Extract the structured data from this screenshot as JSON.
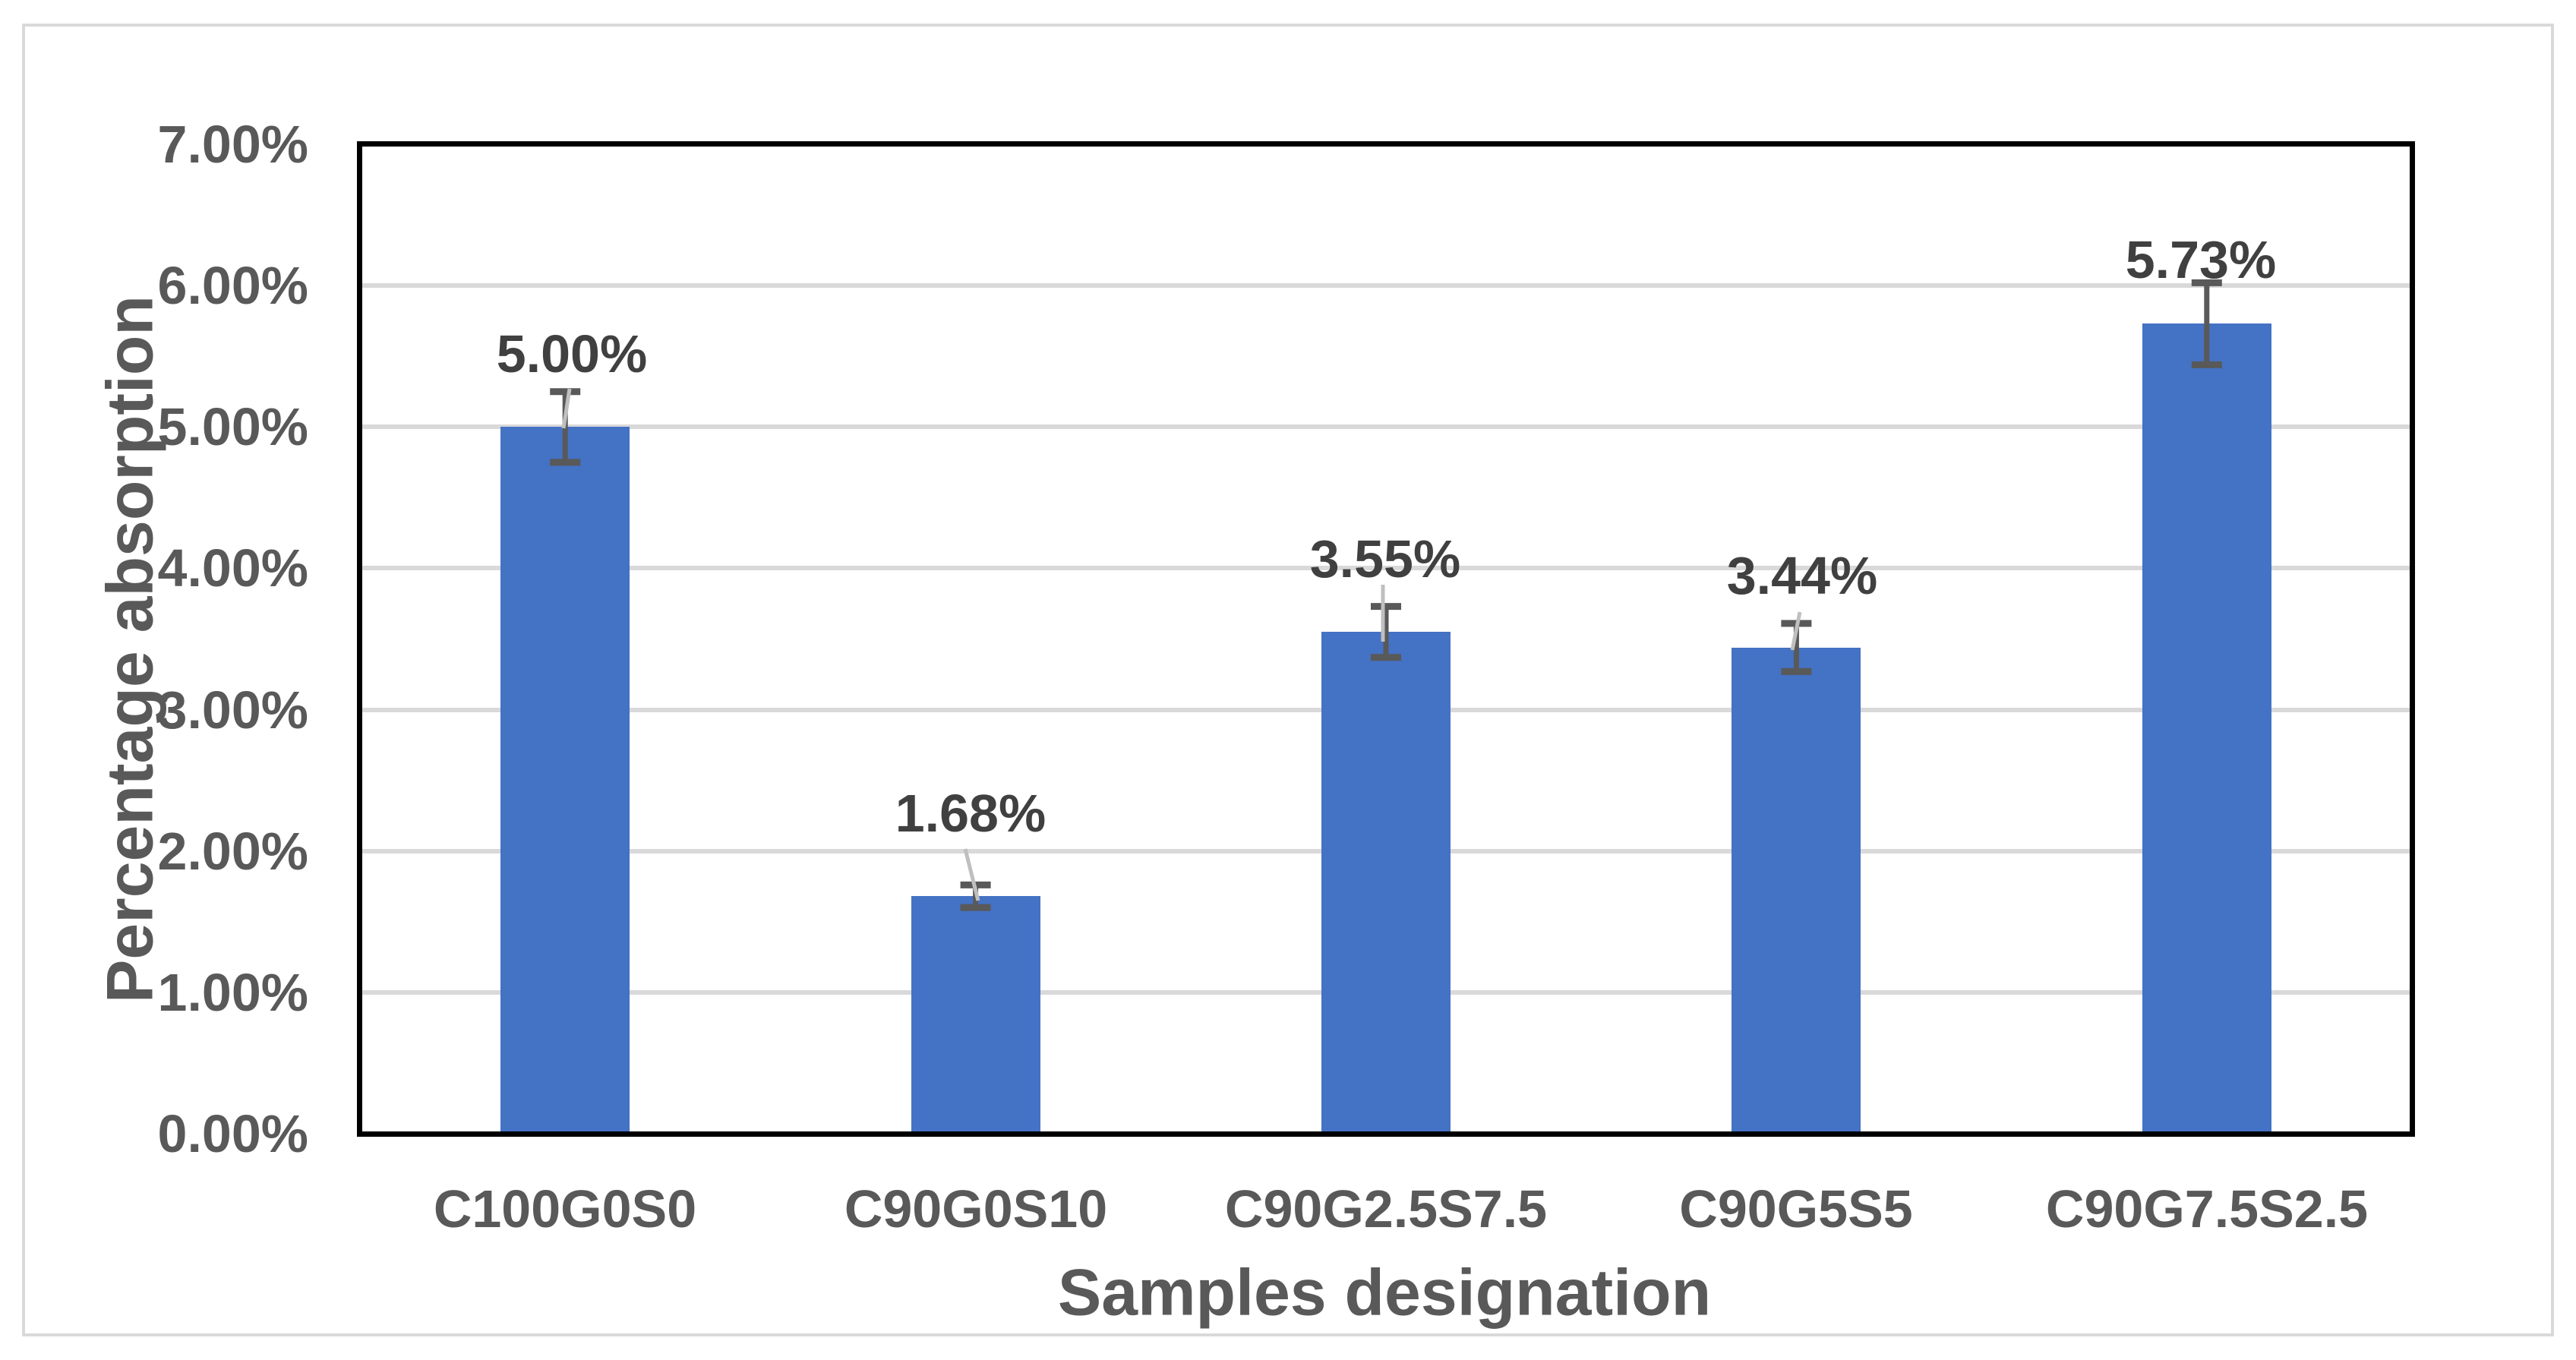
{
  "chart_data": {
    "type": "bar",
    "title": "",
    "xlabel": "Samples designation",
    "ylabel": "Percentage absorption",
    "categories": [
      "C100G0S0",
      "C90G0S10",
      "C90G2.5S7.5",
      "C90G5S5",
      "C90G7.5S2.5"
    ],
    "series": [
      {
        "name": "Percentage absorption",
        "values": [
          5.0,
          1.68,
          3.55,
          3.44,
          5.73
        ]
      }
    ],
    "values": [
      5.0,
      1.68,
      3.55,
      3.44,
      5.73
    ],
    "error_bars_plus_minus": [
      0.25,
      0.08,
      0.18,
      0.17,
      0.29
    ],
    "data_labels": [
      "5.00%",
      "1.68%",
      "3.55%",
      "3.44%",
      "5.73%"
    ],
    "y_tick_labels": [
      "0.00%",
      "1.00%",
      "2.00%",
      "3.00%",
      "4.00%",
      "5.00%",
      "6.00%",
      "7.00%"
    ],
    "ylim": [
      0,
      7
    ],
    "y_tick_step": 1,
    "grid": "horizontal",
    "legend": "none",
    "colors": {
      "bar": "#4472C4",
      "gridline": "#D9D9D9",
      "plot_border": "#000000",
      "chart_border": "#D9D9D9",
      "axis_text": "#595959",
      "data_label_text": "#404040",
      "error_bar": "#595959",
      "leader_line": "#BFBFBF"
    }
  }
}
